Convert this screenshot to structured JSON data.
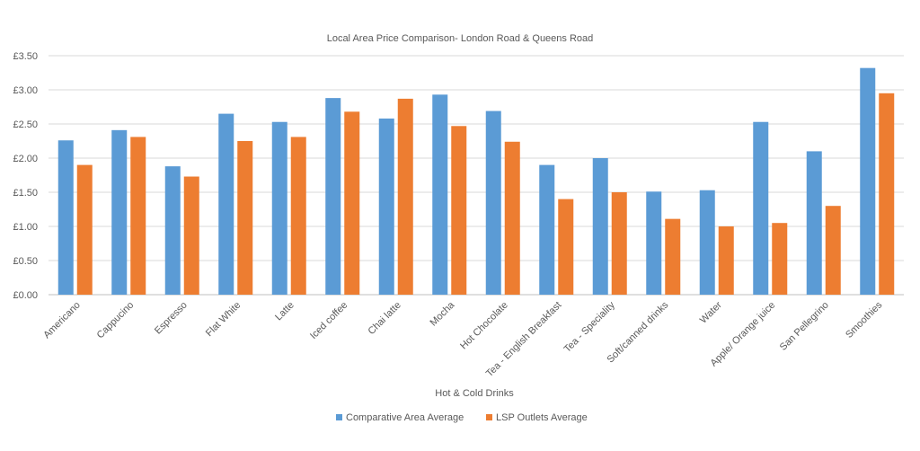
{
  "chart_data": {
    "type": "bar",
    "title": "Local Area Price Comparison- London Road & Queens Road",
    "xlabel": "Hot & Cold Drinks",
    "ylabel": "",
    "ylim": [
      0,
      3.5
    ],
    "y_ticks": [
      "£0.00",
      "£0.50",
      "£1.00",
      "£1.50",
      "£2.00",
      "£2.50",
      "£3.00",
      "£3.50"
    ],
    "y_tick_values": [
      0,
      0.5,
      1,
      1.5,
      2,
      2.5,
      3,
      3.5
    ],
    "grid": true,
    "legend_position": "bottom",
    "categories": [
      "Americano",
      "Cappucino",
      "Espresso",
      "Flat White",
      "Latte",
      "Iced coffee",
      "Chai latte",
      "Mocha",
      "Hot Chocolate",
      "Tea - English Breakfast",
      "Tea - Speciality",
      "Soft/canned drinks",
      "Water",
      "Apple/ Orange juice",
      "San Pellegrino",
      "Smoothies"
    ],
    "series": [
      {
        "name": "Comparative Area Average",
        "color": "#5B9BD5",
        "values": [
          2.26,
          2.41,
          1.88,
          2.65,
          2.53,
          2.88,
          2.58,
          2.93,
          2.69,
          1.9,
          2.0,
          1.51,
          1.53,
          2.53,
          2.1,
          3.32
        ]
      },
      {
        "name": "LSP Outlets Average",
        "color": "#ED7D31",
        "values": [
          1.9,
          2.31,
          1.73,
          2.25,
          2.31,
          2.68,
          2.87,
          2.47,
          2.24,
          1.4,
          1.5,
          1.11,
          1.0,
          1.05,
          1.3,
          2.95
        ]
      }
    ]
  }
}
